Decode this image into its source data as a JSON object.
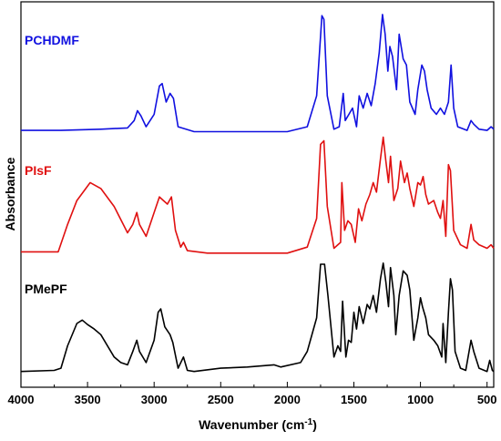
{
  "chart_data": {
    "type": "line",
    "title": "",
    "xlabel": "Wavenumber (cm",
    "xlabel_sup": "-1",
    "xlabel_close": ")",
    "ylabel": "Absorbance",
    "xlim": [
      4000,
      450
    ],
    "x_reversed": true,
    "y_ticks_shown": false,
    "grid": false,
    "x_ticks": [
      4000,
      3500,
      3000,
      2500,
      2000,
      1500,
      1000,
      500
    ],
    "x_tick_labels": [
      "4000",
      "3500",
      "3000",
      "2500",
      "2000",
      "1500",
      "1000",
      "500"
    ],
    "ylim": [
      0,
      1
    ],
    "series": [
      {
        "name": "PCHDMF",
        "color": "#1010e0",
        "offset": 0.66,
        "scale": 0.32,
        "points": [
          [
            4000,
            0.02
          ],
          [
            3700,
            0.02
          ],
          [
            3400,
            0.03
          ],
          [
            3200,
            0.04
          ],
          [
            3150,
            0.1
          ],
          [
            3125,
            0.18
          ],
          [
            3100,
            0.14
          ],
          [
            3060,
            0.05
          ],
          [
            3000,
            0.15
          ],
          [
            2960,
            0.38
          ],
          [
            2940,
            0.4
          ],
          [
            2910,
            0.25
          ],
          [
            2880,
            0.32
          ],
          [
            2855,
            0.28
          ],
          [
            2820,
            0.05
          ],
          [
            2700,
            0.01
          ],
          [
            2000,
            0.01
          ],
          [
            1850,
            0.05
          ],
          [
            1780,
            0.3
          ],
          [
            1740,
            0.95
          ],
          [
            1725,
            0.92
          ],
          [
            1700,
            0.3
          ],
          [
            1650,
            0.03
          ],
          [
            1610,
            0.05
          ],
          [
            1580,
            0.32
          ],
          [
            1565,
            0.1
          ],
          [
            1510,
            0.2
          ],
          [
            1480,
            0.05
          ],
          [
            1460,
            0.3
          ],
          [
            1430,
            0.2
          ],
          [
            1400,
            0.32
          ],
          [
            1370,
            0.22
          ],
          [
            1340,
            0.4
          ],
          [
            1310,
            0.65
          ],
          [
            1285,
            0.96
          ],
          [
            1265,
            0.8
          ],
          [
            1245,
            0.5
          ],
          [
            1230,
            0.7
          ],
          [
            1210,
            0.62
          ],
          [
            1180,
            0.35
          ],
          [
            1160,
            0.8
          ],
          [
            1130,
            0.6
          ],
          [
            1105,
            0.55
          ],
          [
            1080,
            0.25
          ],
          [
            1040,
            0.15
          ],
          [
            1020,
            0.35
          ],
          [
            990,
            0.55
          ],
          [
            970,
            0.5
          ],
          [
            950,
            0.35
          ],
          [
            920,
            0.2
          ],
          [
            880,
            0.15
          ],
          [
            850,
            0.2
          ],
          [
            820,
            0.15
          ],
          [
            790,
            0.25
          ],
          [
            770,
            0.55
          ],
          [
            750,
            0.2
          ],
          [
            720,
            0.05
          ],
          [
            650,
            0.02
          ],
          [
            620,
            0.1
          ],
          [
            600,
            0.07
          ],
          [
            560,
            0.03
          ],
          [
            500,
            0.02
          ],
          [
            470,
            0.05
          ],
          [
            450,
            0.03
          ]
        ]
      },
      {
        "name": "PIsF",
        "color": "#e01010",
        "offset": 0.345,
        "scale": 0.31,
        "points": [
          [
            4000,
            0.02
          ],
          [
            3720,
            0.02
          ],
          [
            3650,
            0.25
          ],
          [
            3580,
            0.45
          ],
          [
            3480,
            0.6
          ],
          [
            3400,
            0.55
          ],
          [
            3300,
            0.4
          ],
          [
            3200,
            0.18
          ],
          [
            3160,
            0.25
          ],
          [
            3130,
            0.35
          ],
          [
            3110,
            0.25
          ],
          [
            3060,
            0.15
          ],
          [
            3000,
            0.35
          ],
          [
            2960,
            0.48
          ],
          [
            2930,
            0.45
          ],
          [
            2900,
            0.42
          ],
          [
            2870,
            0.48
          ],
          [
            2840,
            0.2
          ],
          [
            2800,
            0.06
          ],
          [
            2780,
            0.1
          ],
          [
            2750,
            0.03
          ],
          [
            2600,
            0.01
          ],
          [
            2000,
            0.01
          ],
          [
            1850,
            0.06
          ],
          [
            1780,
            0.3
          ],
          [
            1750,
            0.92
          ],
          [
            1725,
            0.95
          ],
          [
            1700,
            0.4
          ],
          [
            1650,
            0.05
          ],
          [
            1600,
            0.1
          ],
          [
            1590,
            0.6
          ],
          [
            1570,
            0.2
          ],
          [
            1545,
            0.28
          ],
          [
            1520,
            0.25
          ],
          [
            1490,
            0.1
          ],
          [
            1465,
            0.38
          ],
          [
            1440,
            0.28
          ],
          [
            1410,
            0.42
          ],
          [
            1380,
            0.5
          ],
          [
            1355,
            0.6
          ],
          [
            1330,
            0.52
          ],
          [
            1300,
            0.8
          ],
          [
            1280,
            0.98
          ],
          [
            1260,
            0.78
          ],
          [
            1240,
            0.6
          ],
          [
            1225,
            0.82
          ],
          [
            1200,
            0.45
          ],
          [
            1170,
            0.55
          ],
          [
            1150,
            0.78
          ],
          [
            1120,
            0.6
          ],
          [
            1100,
            0.68
          ],
          [
            1080,
            0.55
          ],
          [
            1050,
            0.4
          ],
          [
            1020,
            0.6
          ],
          [
            1000,
            0.58
          ],
          [
            980,
            0.65
          ],
          [
            960,
            0.5
          ],
          [
            940,
            0.42
          ],
          [
            900,
            0.45
          ],
          [
            870,
            0.35
          ],
          [
            850,
            0.3
          ],
          [
            830,
            0.45
          ],
          [
            810,
            0.15
          ],
          [
            790,
            0.75
          ],
          [
            775,
            0.7
          ],
          [
            750,
            0.2
          ],
          [
            700,
            0.08
          ],
          [
            650,
            0.05
          ],
          [
            620,
            0.25
          ],
          [
            600,
            0.12
          ],
          [
            560,
            0.08
          ],
          [
            500,
            0.05
          ],
          [
            470,
            0.08
          ],
          [
            450,
            0.05
          ]
        ]
      },
      {
        "name": "PMePF",
        "color": "#000000",
        "offset": 0.035,
        "scale": 0.29,
        "points": [
          [
            4000,
            0.02
          ],
          [
            3750,
            0.03
          ],
          [
            3700,
            0.05
          ],
          [
            3650,
            0.25
          ],
          [
            3580,
            0.45
          ],
          [
            3540,
            0.48
          ],
          [
            3500,
            0.44
          ],
          [
            3450,
            0.4
          ],
          [
            3400,
            0.35
          ],
          [
            3300,
            0.15
          ],
          [
            3250,
            0.1
          ],
          [
            3200,
            0.08
          ],
          [
            3160,
            0.2
          ],
          [
            3130,
            0.3
          ],
          [
            3110,
            0.2
          ],
          [
            3060,
            0.1
          ],
          [
            3000,
            0.3
          ],
          [
            2970,
            0.55
          ],
          [
            2950,
            0.58
          ],
          [
            2920,
            0.42
          ],
          [
            2880,
            0.35
          ],
          [
            2860,
            0.28
          ],
          [
            2820,
            0.05
          ],
          [
            2780,
            0.15
          ],
          [
            2750,
            0.03
          ],
          [
            2700,
            0.02
          ],
          [
            2500,
            0.05
          ],
          [
            2300,
            0.06
          ],
          [
            2100,
            0.08
          ],
          [
            2050,
            0.06
          ],
          [
            1900,
            0.1
          ],
          [
            1850,
            0.2
          ],
          [
            1780,
            0.5
          ],
          [
            1750,
            0.98
          ],
          [
            1720,
            0.98
          ],
          [
            1695,
            0.7
          ],
          [
            1650,
            0.15
          ],
          [
            1620,
            0.25
          ],
          [
            1600,
            0.2
          ],
          [
            1585,
            0.65
          ],
          [
            1560,
            0.15
          ],
          [
            1540,
            0.3
          ],
          [
            1520,
            0.28
          ],
          [
            1500,
            0.55
          ],
          [
            1480,
            0.4
          ],
          [
            1460,
            0.6
          ],
          [
            1430,
            0.45
          ],
          [
            1400,
            0.62
          ],
          [
            1380,
            0.58
          ],
          [
            1355,
            0.7
          ],
          [
            1330,
            0.55
          ],
          [
            1300,
            0.85
          ],
          [
            1280,
            0.99
          ],
          [
            1260,
            0.82
          ],
          [
            1240,
            0.6
          ],
          [
            1225,
            0.95
          ],
          [
            1200,
            0.7
          ],
          [
            1185,
            0.35
          ],
          [
            1160,
            0.7
          ],
          [
            1130,
            0.92
          ],
          [
            1100,
            0.88
          ],
          [
            1080,
            0.75
          ],
          [
            1050,
            0.3
          ],
          [
            1020,
            0.5
          ],
          [
            1000,
            0.68
          ],
          [
            985,
            0.6
          ],
          [
            960,
            0.5
          ],
          [
            940,
            0.35
          ],
          [
            900,
            0.3
          ],
          [
            870,
            0.25
          ],
          [
            840,
            0.15
          ],
          [
            830,
            0.45
          ],
          [
            810,
            0.1
          ],
          [
            790,
            0.55
          ],
          [
            775,
            0.85
          ],
          [
            760,
            0.75
          ],
          [
            740,
            0.2
          ],
          [
            700,
            0.05
          ],
          [
            660,
            0.03
          ],
          [
            620,
            0.3
          ],
          [
            600,
            0.2
          ],
          [
            560,
            0.05
          ],
          [
            500,
            0.02
          ],
          [
            480,
            0.12
          ],
          [
            460,
            0.03
          ],
          [
            450,
            0.02
          ]
        ]
      }
    ]
  }
}
